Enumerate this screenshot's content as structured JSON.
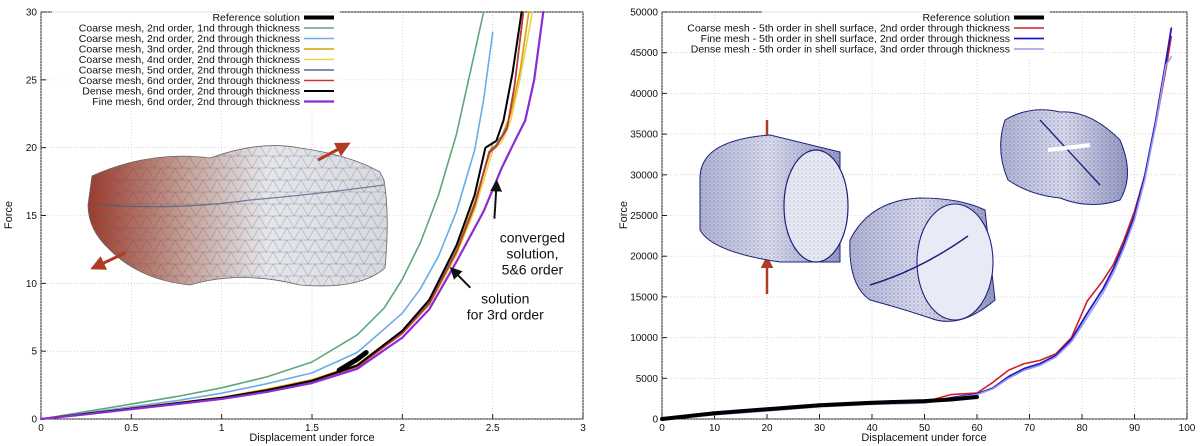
{
  "chart_data": [
    {
      "type": "line",
      "title": "",
      "xlabel": "Displacement under force",
      "ylabel": "Force",
      "xlim": [
        0,
        3
      ],
      "ylim": [
        0,
        30
      ],
      "xticks": [
        "0",
        "0.5",
        "1",
        "1.5",
        "2",
        "2.5",
        "3"
      ],
      "xtick_values": [
        0,
        0.5,
        1,
        1.5,
        2,
        2.5,
        3
      ],
      "yticks": [
        "0",
        "5",
        "10",
        "15",
        "20",
        "25",
        "30"
      ],
      "ytick_values": [
        0,
        5,
        10,
        15,
        20,
        25,
        30
      ],
      "legend_position": "top-right",
      "series": [
        {
          "name": "Reference solution",
          "color": "#000000",
          "width": 5,
          "x": [
            1.65,
            1.7,
            1.75,
            1.8
          ],
          "y": [
            3.6,
            4.0,
            4.4,
            4.9
          ]
        },
        {
          "name": "Coarse mesh, 2nd order, 1nd through thickness",
          "color": "#5fa67a",
          "width": 1.6,
          "x": [
            0,
            0.25,
            0.5,
            0.75,
            1,
            1.25,
            1.5,
            1.75,
            1.9,
            2.0,
            2.1,
            2.2,
            2.3,
            2.4,
            2.45
          ],
          "y": [
            0,
            0.55,
            1.1,
            1.65,
            2.3,
            3.1,
            4.2,
            6.2,
            8.2,
            10.3,
            13.0,
            16.5,
            21.0,
            27.0,
            30.0
          ]
        },
        {
          "name": "Coarse mesh, 2nd order, 2nd through thickness",
          "color": "#6aace8",
          "width": 1.6,
          "x": [
            0,
            0.25,
            0.5,
            0.75,
            1,
            1.25,
            1.5,
            1.75,
            2.0,
            2.1,
            2.2,
            2.3,
            2.4,
            2.45,
            2.5
          ],
          "y": [
            0,
            0.45,
            0.9,
            1.35,
            1.9,
            2.6,
            3.4,
            4.9,
            7.8,
            9.6,
            12.0,
            15.3,
            19.8,
            23.5,
            28.5
          ]
        },
        {
          "name": "Coarse mesh, 3nd order, 2nd through thickness",
          "color": "#d9a000",
          "width": 1.6,
          "x": [
            0,
            0.25,
            0.5,
            0.75,
            1,
            1.25,
            1.5,
            1.75,
            2.0,
            2.15,
            2.3,
            2.4,
            2.5,
            2.55,
            2.6,
            2.65,
            2.7
          ],
          "y": [
            0,
            0.4,
            0.8,
            1.2,
            1.6,
            2.2,
            2.9,
            4.0,
            6.5,
            8.7,
            12.5,
            16.0,
            20.3,
            20.8,
            22.5,
            25.5,
            30.0
          ]
        },
        {
          "name": "Coarse mesh, 4nd order, 2nd through thickness",
          "color": "#e8d44a",
          "width": 1.6,
          "x": [
            0,
            0.25,
            0.5,
            0.75,
            1,
            1.25,
            1.5,
            1.75,
            2.0,
            2.15,
            2.3,
            2.4,
            2.5,
            2.55,
            2.6,
            2.65,
            2.72
          ],
          "y": [
            0,
            0.38,
            0.78,
            1.18,
            1.58,
            2.15,
            2.85,
            3.9,
            6.3,
            8.4,
            12.1,
            15.4,
            19.8,
            20.4,
            22.0,
            25.0,
            30.0
          ]
        },
        {
          "name": "Coarse mesh, 5nd order, 2nd through thickness",
          "color": "#4a6f9c",
          "width": 1.6,
          "x": [
            0,
            0.25,
            0.5,
            0.75,
            1,
            1.25,
            1.5,
            1.75,
            2.0,
            2.15,
            2.3,
            2.4,
            2.48,
            2.52,
            2.58,
            2.62,
            2.67
          ],
          "y": [
            0,
            0.38,
            0.76,
            1.15,
            1.55,
            2.1,
            2.8,
            3.9,
            6.4,
            8.6,
            12.4,
            15.8,
            19.7,
            20.2,
            21.5,
            24.5,
            30.0
          ]
        },
        {
          "name": "Coarse mesh, 6nd order, 2nd through thickness",
          "color": "#c8362e",
          "width": 1.6,
          "x": [
            0,
            0.25,
            0.5,
            0.75,
            1,
            1.25,
            1.5,
            1.75,
            2.0,
            2.15,
            2.3,
            2.4,
            2.48,
            2.52,
            2.58,
            2.62,
            2.67
          ],
          "y": [
            0,
            0.37,
            0.75,
            1.14,
            1.54,
            2.08,
            2.78,
            3.85,
            6.3,
            8.5,
            12.3,
            15.7,
            19.6,
            20.1,
            21.4,
            24.4,
            30.0
          ]
        },
        {
          "name": "Dense mesh, 6nd order, 2nd through thickness",
          "color": "#000000",
          "width": 2,
          "x": [
            0,
            0.25,
            0.5,
            0.75,
            1,
            1.25,
            1.5,
            1.75,
            2.0,
            2.15,
            2.3,
            2.4,
            2.46,
            2.52,
            2.56,
            2.61,
            2.66
          ],
          "y": [
            0,
            0.38,
            0.77,
            1.16,
            1.56,
            2.12,
            2.82,
            3.95,
            6.5,
            8.8,
            12.8,
            16.5,
            20.0,
            20.5,
            22.0,
            25.5,
            30.0
          ]
        },
        {
          "name": "Fine mesh, 6nd order, 2nd through thickness",
          "color": "#8a2bd4",
          "width": 2.2,
          "x": [
            0,
            0.25,
            0.5,
            0.75,
            1,
            1.25,
            1.5,
            1.75,
            2.0,
            2.15,
            2.3,
            2.45,
            2.55,
            2.62,
            2.68,
            2.73,
            2.78
          ],
          "y": [
            0,
            0.35,
            0.72,
            1.1,
            1.48,
            2.0,
            2.65,
            3.7,
            6.0,
            8.1,
            11.6,
            15.3,
            18.5,
            20.4,
            22.0,
            25.0,
            30.0
          ]
        }
      ],
      "annotations": [
        {
          "lines": [
            "converged",
            "solution,",
            "5&6 order"
          ],
          "x": 2.72,
          "y": 13.0,
          "target_x": 2.5,
          "target_y": 17.7
        },
        {
          "lines": [
            "solution",
            "for 3rd order"
          ],
          "x": 2.57,
          "y": 8.5,
          "target_x": 2.25,
          "target_y": 11.3
        }
      ]
    },
    {
      "type": "line",
      "title": "",
      "xlabel": "Displacement under force",
      "ylabel": "Force",
      "xlim": [
        0,
        100
      ],
      "ylim": [
        0,
        50000
      ],
      "xticks": [
        "0",
        "10",
        "20",
        "30",
        "40",
        "50",
        "60",
        "70",
        "80",
        "90",
        "100"
      ],
      "xtick_values": [
        0,
        10,
        20,
        30,
        40,
        50,
        60,
        70,
        80,
        90,
        100
      ],
      "yticks": [
        "0",
        "5000",
        "10000",
        "15000",
        "20000",
        "25000",
        "30000",
        "35000",
        "40000",
        "45000",
        "50000"
      ],
      "ytick_values": [
        0,
        5000,
        10000,
        15000,
        20000,
        25000,
        30000,
        35000,
        40000,
        45000,
        50000
      ],
      "legend_position": "top-right",
      "series": [
        {
          "name": "Reference solution",
          "color": "#000000",
          "width": 4,
          "x": [
            0,
            10,
            20,
            30,
            40,
            50,
            55,
            60
          ],
          "y": [
            0,
            700,
            1200,
            1700,
            2000,
            2200,
            2400,
            2700
          ]
        },
        {
          "name": "Coarse mesh - 5th order in shell surface, 2nd order through thickness",
          "color": "#d42020",
          "width": 1.6,
          "x": [
            0,
            10,
            20,
            30,
            40,
            50,
            55,
            60,
            63,
            66,
            69,
            72,
            75,
            78,
            81,
            84,
            86,
            88,
            90,
            92,
            94,
            96,
            97
          ],
          "y": [
            0,
            600,
            1100,
            1600,
            1900,
            2100,
            3000,
            3200,
            4500,
            6000,
            6800,
            7200,
            8000,
            10000,
            14500,
            17000,
            19000,
            22000,
            25500,
            30000,
            36000,
            43000,
            47000
          ]
        },
        {
          "name": "Fine mesh - 5th order in shell surface, 2nd order through thickness",
          "color": "#1a1acc",
          "width": 1.8,
          "x": [
            0,
            10,
            20,
            30,
            40,
            50,
            55,
            60,
            63,
            66,
            69,
            72,
            75,
            78,
            81,
            84,
            86,
            88,
            90,
            92,
            94,
            96,
            97
          ],
          "y": [
            0,
            550,
            1050,
            1550,
            1850,
            2000,
            2600,
            3100,
            3800,
            5200,
            6200,
            6800,
            7800,
            9800,
            13000,
            16000,
            18500,
            21500,
            25000,
            30000,
            36500,
            44000,
            48000
          ]
        },
        {
          "name": "Dense mesh - 5th order in shell surface, 3nd order through thickness",
          "color": "#9a9aee",
          "width": 1.6,
          "x": [
            0,
            10,
            20,
            30,
            40,
            50,
            55,
            60,
            63,
            66,
            69,
            72,
            75,
            78,
            81,
            84,
            86,
            88,
            90,
            92,
            94,
            96,
            97
          ],
          "y": [
            0,
            520,
            1000,
            1500,
            1800,
            1950,
            2500,
            3000,
            3700,
            5000,
            6000,
            6600,
            7600,
            9500,
            12500,
            15500,
            18000,
            21000,
            24500,
            29500,
            36000,
            43500,
            44500
          ]
        }
      ]
    }
  ]
}
